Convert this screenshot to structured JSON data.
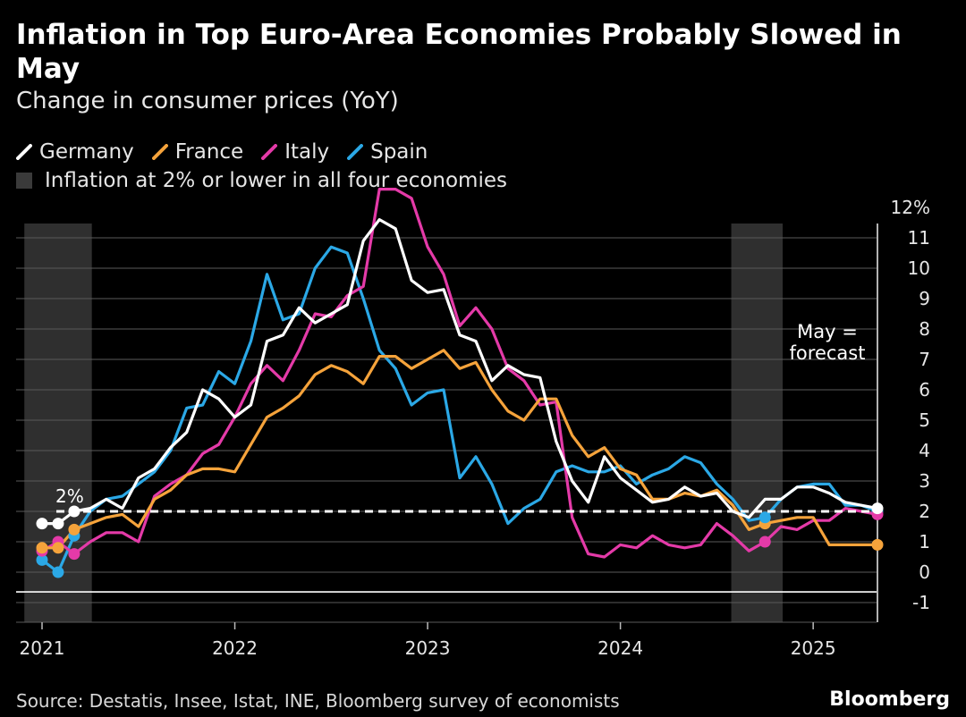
{
  "title": "Inflation in Top Euro-Area Economies Probably Slowed in May",
  "subtitle": "Change in consumer prices (YoY)",
  "source": "Source: Destatis, Insee, Istat, INE, Bloomberg survey of economists",
  "brand": "Bloomberg",
  "legend": {
    "series": [
      {
        "name": "Germany",
        "color": "#ffffff"
      },
      {
        "name": "France",
        "color": "#f5a33b"
      },
      {
        "name": "Italy",
        "color": "#e43aa8"
      },
      {
        "name": "Spain",
        "color": "#2ba8e6"
      }
    ],
    "band_label": "Inflation at 2% or lower in all four economies"
  },
  "annotations": {
    "threshold_label": "2%",
    "forecast_label_line1": "May =",
    "forecast_label_line2": "forecast"
  },
  "chart_data": {
    "type": "line",
    "x": [
      "2021-01",
      "2021-02",
      "2021-03",
      "2021-04",
      "2021-05",
      "2021-06",
      "2021-07",
      "2021-08",
      "2021-09",
      "2021-10",
      "2021-11",
      "2021-12",
      "2022-01",
      "2022-02",
      "2022-03",
      "2022-04",
      "2022-05",
      "2022-06",
      "2022-07",
      "2022-08",
      "2022-09",
      "2022-10",
      "2022-11",
      "2022-12",
      "2023-01",
      "2023-02",
      "2023-03",
      "2023-04",
      "2023-05",
      "2023-06",
      "2023-07",
      "2023-08",
      "2023-09",
      "2023-10",
      "2023-11",
      "2023-12",
      "2024-01",
      "2024-02",
      "2024-03",
      "2024-04",
      "2024-05",
      "2024-06",
      "2024-07",
      "2024-08",
      "2024-09",
      "2024-10",
      "2024-11",
      "2024-12",
      "2025-01",
      "2025-02",
      "2025-03",
      "2025-04",
      "2025-05"
    ],
    "series": [
      {
        "name": "Germany",
        "values": [
          1.6,
          1.6,
          2.0,
          2.1,
          2.4,
          2.1,
          3.1,
          3.4,
          4.1,
          4.6,
          6.0,
          5.7,
          5.1,
          5.5,
          7.6,
          7.8,
          8.7,
          8.2,
          8.5,
          8.8,
          10.9,
          11.6,
          11.3,
          9.6,
          9.2,
          9.3,
          7.8,
          7.6,
          6.3,
          6.8,
          6.5,
          6.4,
          4.3,
          3.0,
          2.3,
          3.8,
          3.1,
          2.7,
          2.3,
          2.4,
          2.8,
          2.5,
          2.6,
          2.0,
          1.8,
          2.4,
          2.4,
          2.8,
          2.8,
          2.6,
          2.3,
          2.2,
          2.1
        ]
      },
      {
        "name": "France",
        "values": [
          0.8,
          0.8,
          1.4,
          1.6,
          1.8,
          1.9,
          1.5,
          2.4,
          2.7,
          3.2,
          3.4,
          3.4,
          3.3,
          4.2,
          5.1,
          5.4,
          5.8,
          6.5,
          6.8,
          6.6,
          6.2,
          7.1,
          7.1,
          6.7,
          7.0,
          7.3,
          6.7,
          6.9,
          6.0,
          5.3,
          5.0,
          5.7,
          5.7,
          4.5,
          3.8,
          4.1,
          3.4,
          3.2,
          2.4,
          2.4,
          2.6,
          2.5,
          2.7,
          2.2,
          1.4,
          1.6,
          1.7,
          1.8,
          1.8,
          0.9,
          0.9,
          0.9,
          0.9
        ]
      },
      {
        "name": "Italy",
        "values": [
          0.7,
          1.0,
          0.6,
          1.0,
          1.3,
          1.3,
          1.0,
          2.5,
          2.9,
          3.2,
          3.9,
          4.2,
          5.1,
          6.2,
          6.8,
          6.3,
          7.3,
          8.5,
          8.4,
          9.1,
          9.4,
          12.6,
          12.6,
          12.3,
          10.7,
          9.8,
          8.1,
          8.7,
          8.0,
          6.7,
          6.3,
          5.5,
          5.6,
          1.8,
          0.6,
          0.5,
          0.9,
          0.8,
          1.2,
          0.9,
          0.8,
          0.9,
          1.6,
          1.2,
          0.7,
          1.0,
          1.5,
          1.4,
          1.7,
          1.7,
          2.1,
          2.0,
          1.9
        ]
      },
      {
        "name": "Spain",
        "values": [
          0.4,
          0.0,
          1.2,
          2.0,
          2.4,
          2.5,
          2.9,
          3.3,
          4.0,
          5.4,
          5.5,
          6.6,
          6.2,
          7.6,
          9.8,
          8.3,
          8.5,
          10.0,
          10.7,
          10.5,
          9.0,
          7.3,
          6.7,
          5.5,
          5.9,
          6.0,
          3.1,
          3.8,
          2.9,
          1.6,
          2.1,
          2.4,
          3.3,
          3.5,
          3.3,
          3.3,
          3.5,
          2.9,
          3.2,
          3.4,
          3.8,
          3.6,
          2.9,
          2.4,
          1.7,
          1.8,
          2.4,
          2.8,
          2.9,
          2.9,
          2.2,
          2.2,
          2.0
        ]
      }
    ],
    "x_ticks": [
      "2021",
      "2022",
      "2023",
      "2024",
      "2025"
    ],
    "y_ticks": [
      "12%",
      "11",
      "10",
      "9",
      "8",
      "7",
      "6",
      "5",
      "4",
      "3",
      "2",
      "1",
      "0",
      "-1"
    ],
    "ylim": [
      -1,
      12
    ],
    "threshold": 2,
    "shaded_periods": [
      [
        "2021-01",
        "2021-03"
      ],
      [
        "2024-09",
        "2024-10"
      ]
    ],
    "forecast_month": "2025-05",
    "grid": true
  }
}
